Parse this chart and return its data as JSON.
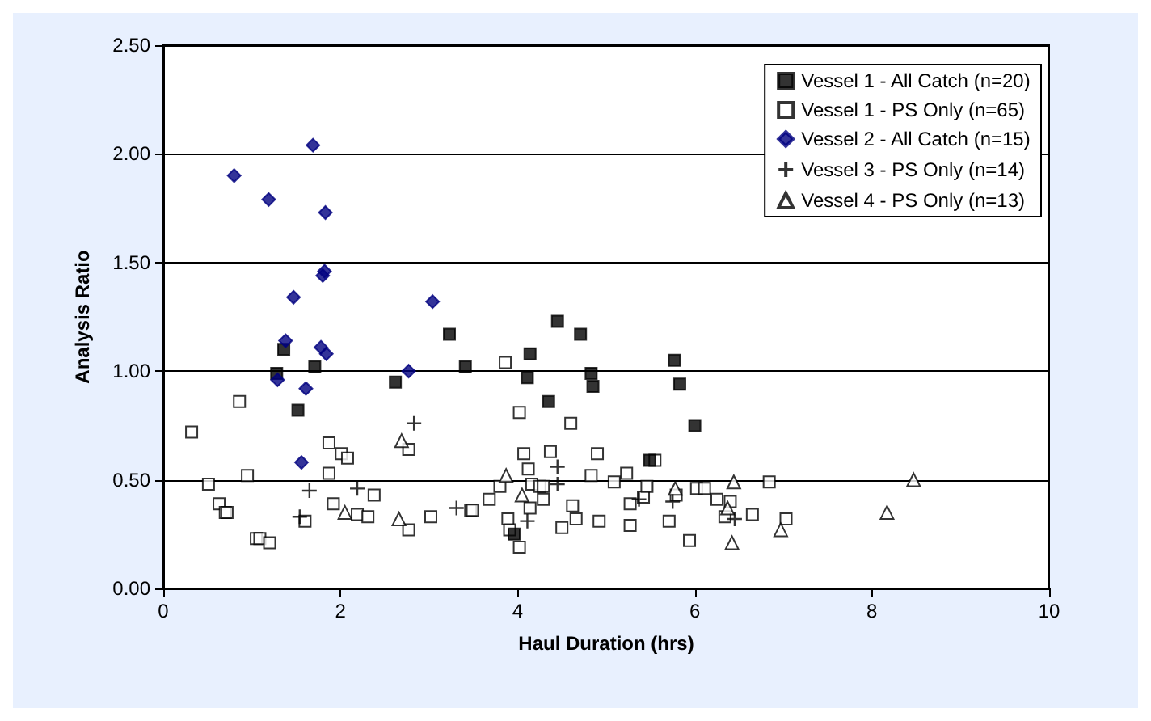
{
  "chart_data": {
    "type": "scatter",
    "xlabel": "Haul Duration (hrs)",
    "ylabel": "Analysis Ratio",
    "xlim": [
      0,
      10
    ],
    "xticks": [
      0,
      2,
      4,
      6,
      8,
      10
    ],
    "ylim": [
      0,
      2.5
    ],
    "yticks": [
      {
        "value": 0,
        "label": "0.00"
      },
      {
        "value": 0.5,
        "label": "0.50"
      },
      {
        "value": 1,
        "label": "1.00"
      },
      {
        "value": 1.5,
        "label": "1.50"
      },
      {
        "value": 2,
        "label": "2.00"
      },
      {
        "value": 2.5,
        "label": "2.50"
      }
    ],
    "grid": "y",
    "legend": "top right",
    "series": [
      {
        "name": "Vessel 1 - All Catch (n=20)",
        "color": "#000000",
        "marker": "square",
        "x": [
          1.28,
          1.36,
          1.52,
          1.71,
          2.62,
          3.23,
          3.41,
          4.45,
          4.71,
          4.14,
          5.77,
          4.11,
          4.83,
          4.85,
          5.83,
          4.35,
          6.0,
          5.49,
          3.96
        ],
        "values": [
          0.99,
          1.1,
          0.82,
          1.02,
          0.95,
          1.17,
          1.02,
          1.23,
          1.17,
          1.08,
          1.05,
          0.97,
          0.99,
          0.93,
          0.94,
          0.86,
          0.75,
          0.59,
          0.25
        ]
      },
      {
        "name": "Vessel 1 - PS Only (n=65)",
        "color": "#ffffff",
        "marker": "square",
        "x": [
          0.32,
          0.86,
          0.51,
          0.95,
          0.63,
          0.7,
          0.72,
          1.05,
          1.09,
          1.2,
          1.6,
          1.87,
          1.87,
          2.01,
          2.08,
          1.92,
          2.19,
          2.31,
          2.38,
          2.77,
          2.77,
          3.02,
          3.47,
          3.86,
          4.02,
          4.6,
          4.07,
          4.37,
          4.9,
          4.12,
          4.83,
          5.23,
          5.09,
          3.8,
          4.16,
          4.25,
          4.29,
          3.68,
          3.49,
          4.29,
          4.14,
          4.62,
          4.66,
          3.89,
          3.91,
          4.02,
          4.5,
          4.92,
          5.27,
          5.27,
          5.42,
          5.46,
          5.55,
          5.71,
          5.79,
          5.94,
          6.02,
          6.11,
          6.25,
          6.4,
          6.34,
          6.65,
          6.84,
          7.03
        ],
        "values": [
          0.72,
          0.86,
          0.48,
          0.52,
          0.39,
          0.35,
          0.35,
          0.23,
          0.23,
          0.21,
          0.31,
          0.67,
          0.53,
          0.62,
          0.6,
          0.39,
          0.34,
          0.33,
          0.43,
          0.64,
          0.27,
          0.33,
          0.36,
          1.04,
          0.81,
          0.76,
          0.62,
          0.63,
          0.62,
          0.55,
          0.52,
          0.53,
          0.49,
          0.47,
          0.48,
          0.47,
          0.47,
          0.41,
          0.36,
          0.41,
          0.37,
          0.38,
          0.32,
          0.32,
          0.27,
          0.19,
          0.28,
          0.31,
          0.29,
          0.39,
          0.42,
          0.47,
          0.59,
          0.31,
          0.43,
          0.22,
          0.46,
          0.46,
          0.41,
          0.4,
          0.33,
          0.34,
          0.49,
          0.32
        ]
      },
      {
        "name": "Vessel 2 - All Catch (n=15)",
        "color": "#000080",
        "marker": "diamond",
        "x": [
          1.69,
          0.8,
          1.19,
          1.83,
          1.8,
          1.82,
          1.47,
          3.04,
          1.38,
          1.78,
          1.84,
          2.77,
          1.29,
          1.61,
          1.56
        ],
        "values": [
          2.04,
          1.9,
          1.79,
          1.73,
          1.44,
          1.46,
          1.34,
          1.32,
          1.14,
          1.11,
          1.08,
          1.0,
          0.96,
          0.92,
          0.58
        ]
      },
      {
        "name": "Vessel 3 - PS Only (n=14)",
        "color": "#000000",
        "marker": "cross",
        "x": [
          1.65,
          1.54,
          2.19,
          2.83,
          3.31,
          4.45,
          4.45,
          4.11,
          5.37,
          5.75,
          6.45
        ],
        "values": [
          0.45,
          0.33,
          0.46,
          0.76,
          0.37,
          0.56,
          0.48,
          0.31,
          0.41,
          0.4,
          0.32
        ]
      },
      {
        "name": "Vessel 4 - PS Only (n=13)",
        "color": "#ffffff",
        "marker": "triangle",
        "x": [
          2.05,
          2.69,
          2.66,
          3.87,
          4.05,
          5.78,
          6.44,
          6.37,
          6.42,
          6.97,
          8.17,
          8.47
        ],
        "values": [
          0.35,
          0.68,
          0.32,
          0.52,
          0.43,
          0.46,
          0.49,
          0.37,
          0.21,
          0.27,
          0.35,
          0.5
        ]
      }
    ]
  }
}
